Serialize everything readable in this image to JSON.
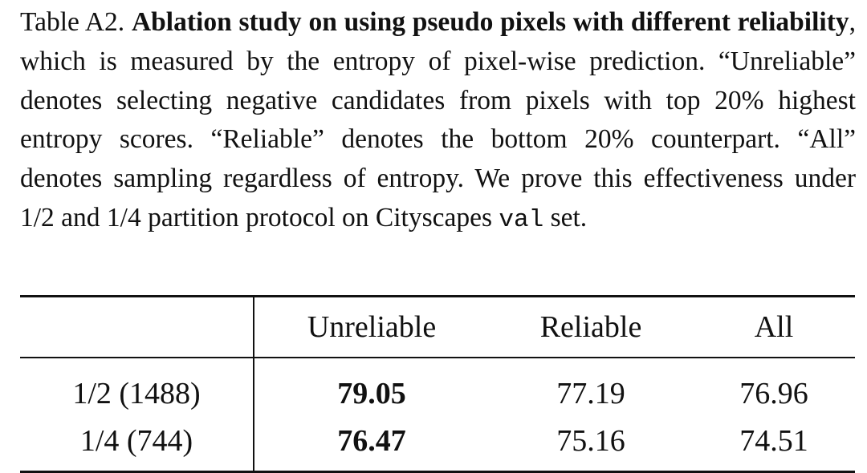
{
  "caption": {
    "label": "Table A2.",
    "title": "Ablation study on using pseudo pixels with different reliability",
    "text": ", which is measured by the entropy of pixel-wise prediction. “Unreliable” denotes selecting negative candidates from pixels with top 20% highest entropy scores. “Reliable” denotes the bottom 20% counterpart. “All” denotes sampling regardless of entropy. We prove this effectiveness under 1/2 and 1/4 partition protocol on Cityscapes",
    "code": "val",
    "end": "set."
  },
  "table": {
    "header": [
      "Unreliable",
      "Reliable",
      "All"
    ],
    "rows": [
      [
        "1/2 (1488)",
        "79.05",
        "77.19",
        "76.96"
      ],
      [
        "1/4 (744)",
        "76.47",
        "75.16",
        "74.51"
      ]
    ]
  }
}
